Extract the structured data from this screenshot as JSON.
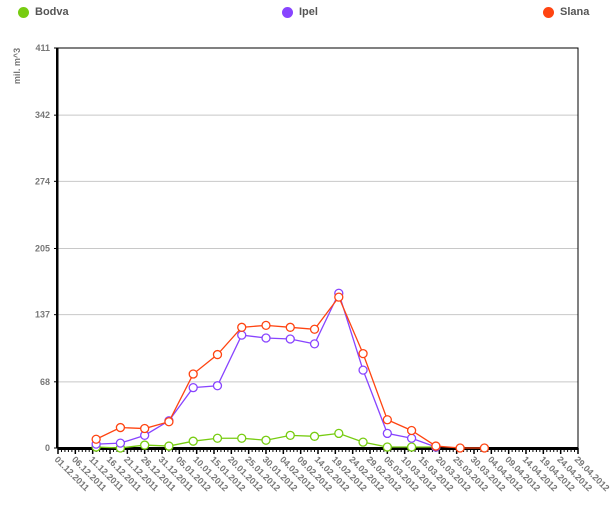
{
  "chart_data": {
    "type": "line",
    "ylabel": "mil. m^3",
    "ylim": [
      0,
      411
    ],
    "yticks": [
      0,
      68,
      137,
      205,
      274,
      342,
      411
    ],
    "xlim": [
      "2011-12-01",
      "2012-04-29"
    ],
    "xtick_labels": [
      "01.12.2011",
      "06.12.2011",
      "11.12.2011",
      "16.12.2011",
      "21.12.2011",
      "26.12.2011",
      "31.12.2011",
      "05.01.2012",
      "10.01.2012",
      "15.01.2012",
      "20.01.2012",
      "25.01.2012",
      "30.01.2012",
      "04.02.2012",
      "09.02.2012",
      "14.02.2012",
      "19.02.2012",
      "24.02.2012",
      "29.02.2012",
      "05.03.2012",
      "10.03.2012",
      "15.03.2012",
      "20.03.2012",
      "25.03.2012",
      "30.03.2012",
      "04.04.2012",
      "09.04.2012",
      "14.04.2012",
      "19.04.2012",
      "24.04.2012",
      "29.04.2012"
    ],
    "grid": true,
    "legend": "top",
    "x": [
      "2011-12-12",
      "2011-12-19",
      "2011-12-26",
      "2012-01-02",
      "2012-01-09",
      "2012-01-16",
      "2012-01-23",
      "2012-01-30",
      "2012-02-06",
      "2012-02-13",
      "2012-02-20",
      "2012-02-27",
      "2012-03-05",
      "2012-03-12",
      "2012-03-19",
      "2012-03-26",
      "2012-04-02"
    ],
    "series": [
      {
        "name": "Bodva",
        "color": "#77cc11",
        "values": [
          1,
          0,
          3,
          2,
          7,
          10,
          10,
          8,
          13,
          12,
          15,
          6,
          1,
          1,
          1,
          null,
          null
        ]
      },
      {
        "name": "Ipel",
        "color": "#8844ff",
        "values": [
          4,
          5,
          13,
          28,
          62,
          64,
          116,
          113,
          112,
          107,
          159,
          80,
          15,
          10,
          1,
          null,
          null
        ]
      },
      {
        "name": "Slana",
        "color": "#ff4411",
        "values": [
          9,
          21,
          20,
          27,
          76,
          96,
          124,
          126,
          124,
          122,
          155,
          97,
          29,
          18,
          2,
          0,
          0
        ]
      }
    ]
  }
}
